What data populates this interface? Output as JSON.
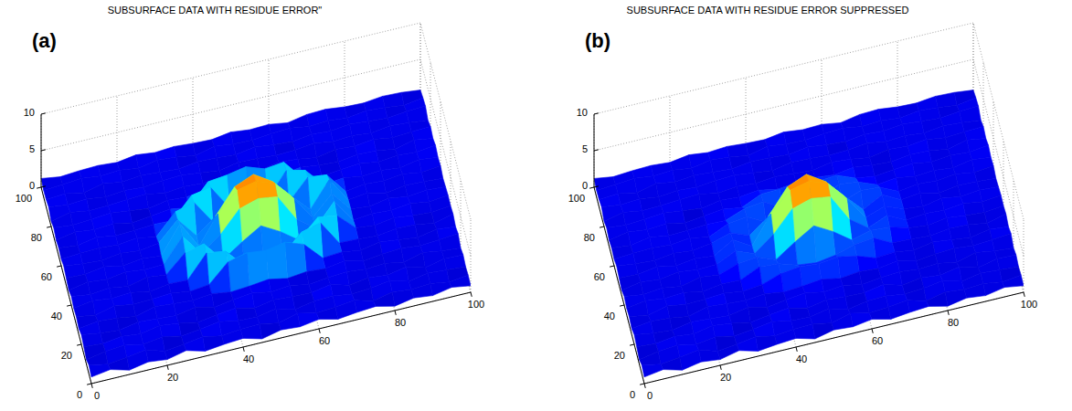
{
  "panel_labels": [
    "(a)",
    "(b)"
  ],
  "chart_data": [
    {
      "type": "surface",
      "title": "SUBSURFACE DATA WITH RESIDUE ERROR\"",
      "x": [
        0,
        5,
        10,
        15,
        20,
        25,
        30,
        35,
        40,
        45,
        50,
        55,
        60,
        65,
        70,
        75,
        80,
        85,
        90,
        95,
        100
      ],
      "y": [
        0,
        5,
        10,
        15,
        20,
        25,
        30,
        35,
        40,
        45,
        50,
        55,
        60,
        65,
        70,
        75,
        80,
        85,
        90,
        95,
        100
      ],
      "z": [
        [
          0.9,
          1.3,
          0.6,
          1.1,
          0.8,
          1.4,
          0.7,
          1.0,
          1.2,
          0.5,
          1.1,
          0.9,
          1.3,
          0.7,
          1.0,
          1.2,
          0.6,
          1.1,
          0.8,
          1.3,
          0.9
        ],
        [
          1.2,
          0.7,
          1.0,
          1.4,
          0.6,
          0.9,
          1.3,
          0.8,
          1.1,
          1.2,
          0.7,
          1.4,
          0.8,
          1.0,
          1.3,
          0.6,
          1.2,
          0.9,
          1.1,
          0.7,
          1.0
        ],
        [
          0.6,
          1.1,
          1.3,
          0.8,
          1.2,
          0.7,
          1.0,
          1.4,
          0.9,
          0.8,
          1.3,
          0.6,
          1.1,
          1.2,
          0.8,
          1.0,
          1.4,
          0.7,
          1.2,
          1.0,
          0.8
        ],
        [
          1.0,
          0.8,
          1.2,
          0.9,
          1.4,
          1.1,
          0.6,
          1.0,
          1.3,
          0.7,
          1.2,
          1.0,
          0.9,
          1.4,
          0.7,
          1.1,
          0.8,
          1.3,
          0.6,
          1.2,
          1.1
        ],
        [
          1.3,
          0.9,
          0.7,
          1.2,
          1.0,
          0.8,
          1.3,
          0.7,
          1.1,
          1.4,
          0.9,
          1.2,
          0.7,
          1.0,
          1.2,
          0.9,
          1.1,
          0.6,
          1.3,
          0.9,
          0.7
        ],
        [
          0.8,
          1.2,
          1.0,
          0.6,
          1.3,
          1.1,
          0.9,
          1.2,
          0.8,
          1.0,
          1.3,
          0.8,
          1.1,
          0.9,
          1.3,
          0.7,
          1.0,
          1.2,
          0.9,
          1.1,
          1.3
        ],
        [
          1.1,
          0.7,
          1.3,
          0.9,
          1.0,
          1.2,
          0.8,
          1.1,
          3.6,
          4.2,
          3.9,
          4.4,
          3.5,
          1.0,
          1.2,
          0.8,
          1.3,
          1.0,
          0.7,
          1.2,
          0.9
        ],
        [
          0.9,
          1.3,
          1.0,
          1.2,
          0.7,
          1.1,
          1.0,
          4.1,
          3.7,
          1.2,
          0.9,
          1.3,
          3.8,
          4.5,
          1.1,
          1.0,
          0.8,
          1.2,
          1.1,
          0.7,
          1.3
        ],
        [
          1.2,
          0.8,
          1.1,
          0.7,
          1.3,
          1.0,
          3.4,
          4.0,
          1.2,
          3.0,
          4.6,
          3.2,
          1.4,
          3.9,
          3.5,
          1.2,
          0.9,
          1.3,
          1.0,
          0.8,
          1.1
        ],
        [
          0.7,
          1.2,
          0.9,
          1.3,
          1.0,
          1.1,
          4.3,
          1.3,
          3.3,
          6.2,
          7.0,
          6.6,
          2.9,
          1.1,
          4.1,
          0.9,
          1.2,
          1.0,
          1.3,
          0.9,
          1.2
        ],
        [
          1.0,
          0.9,
          1.3,
          0.8,
          1.2,
          0.9,
          4.7,
          1.0,
          4.8,
          7.4,
          8.0,
          7.1,
          4.4,
          1.2,
          3.8,
          1.1,
          0.8,
          1.3,
          0.9,
          1.2,
          1.0
        ],
        [
          1.3,
          1.0,
          0.8,
          1.2,
          0.9,
          1.3,
          3.9,
          1.1,
          3.1,
          6.5,
          7.6,
          6.0,
          3.4,
          0.9,
          4.4,
          1.0,
          1.3,
          0.7,
          1.1,
          1.0,
          0.8
        ],
        [
          0.9,
          1.1,
          1.2,
          1.0,
          1.3,
          0.8,
          3.6,
          4.3,
          1.0,
          2.8,
          4.9,
          3.1,
          1.2,
          4.0,
          3.7,
          0.8,
          1.2,
          1.0,
          1.3,
          0.9,
          1.2
        ],
        [
          1.1,
          0.8,
          1.3,
          0.9,
          1.0,
          1.2,
          1.1,
          3.9,
          4.4,
          1.0,
          1.3,
          0.9,
          4.2,
          3.6,
          1.0,
          1.3,
          0.9,
          1.1,
          0.8,
          1.3,
          1.0
        ],
        [
          0.8,
          1.3,
          1.0,
          1.2,
          0.7,
          1.0,
          1.3,
          0.9,
          3.8,
          4.1,
          4.6,
          3.7,
          4.0,
          1.2,
          0.8,
          1.1,
          1.3,
          0.9,
          1.2,
          1.0,
          1.3
        ],
        [
          1.2,
          0.9,
          1.1,
          1.3,
          1.0,
          0.7,
          1.2,
          1.0,
          1.3,
          0.8,
          1.1,
          1.2,
          0.9,
          1.3,
          1.0,
          0.8,
          1.2,
          1.1,
          0.7,
          1.3,
          0.9
        ],
        [
          0.7,
          1.3,
          0.9,
          1.0,
          1.2,
          1.3,
          0.8,
          1.1,
          0.9,
          1.2,
          1.0,
          0.8,
          1.3,
          1.1,
          0.7,
          1.2,
          1.0,
          1.3,
          0.9,
          1.1,
          1.2
        ],
        [
          1.3,
          1.0,
          1.2,
          0.8,
          1.1,
          0.9,
          1.2,
          1.3,
          1.0,
          0.7,
          1.2,
          1.1,
          0.9,
          1.0,
          1.3,
          0.9,
          1.1,
          0.8,
          1.2,
          1.0,
          0.7
        ],
        [
          1.0,
          1.2,
          0.7,
          1.3,
          0.9,
          1.2,
          1.0,
          0.8,
          1.2,
          1.1,
          0.9,
          1.3,
          1.0,
          0.8,
          1.2,
          1.0,
          1.3,
          1.1,
          0.9,
          1.2,
          1.3
        ],
        [
          0.9,
          1.1,
          1.3,
          1.0,
          1.2,
          0.8,
          1.3,
          1.1,
          0.7,
          1.3,
          1.0,
          0.9,
          1.2,
          1.3,
          0.9,
          1.1,
          0.8,
          1.2,
          1.0,
          0.7,
          1.1
        ],
        [
          1.2,
          0.8,
          1.0,
          1.1,
          0.9,
          1.3,
          1.0,
          1.2,
          1.0,
          0.9,
          1.3,
          1.0,
          1.1,
          0.7,
          1.2,
          1.3,
          1.0,
          0.9,
          1.2,
          1.1,
          0.8
        ]
      ],
      "xlim": [
        0,
        100
      ],
      "ylim": [
        0,
        100
      ],
      "zlim": [
        0,
        10
      ],
      "xticks": [
        0,
        20,
        40,
        60,
        80,
        100
      ],
      "yticks": [
        0,
        20,
        40,
        60,
        80,
        100
      ],
      "zticks": [
        0,
        5,
        10
      ],
      "grid": true
    },
    {
      "type": "surface",
      "title": "SUBSURFACE DATA WITH RESIDUE ERROR SUPPRESSED",
      "x": [
        0,
        5,
        10,
        15,
        20,
        25,
        30,
        35,
        40,
        45,
        50,
        55,
        60,
        65,
        70,
        75,
        80,
        85,
        90,
        95,
        100
      ],
      "y": [
        0,
        5,
        10,
        15,
        20,
        25,
        30,
        35,
        40,
        45,
        50,
        55,
        60,
        65,
        70,
        75,
        80,
        85,
        90,
        95,
        100
      ],
      "z": [
        [
          0.9,
          1.3,
          0.6,
          1.1,
          0.8,
          1.4,
          0.7,
          1.0,
          1.2,
          0.5,
          1.1,
          0.9,
          1.3,
          0.7,
          1.0,
          1.2,
          0.6,
          1.1,
          0.8,
          1.3,
          0.9
        ],
        [
          1.2,
          0.7,
          1.0,
          1.4,
          0.6,
          0.9,
          1.3,
          0.8,
          1.1,
          1.2,
          0.7,
          1.4,
          0.8,
          1.0,
          1.3,
          0.6,
          1.2,
          0.9,
          1.1,
          0.7,
          1.0
        ],
        [
          0.6,
          1.1,
          1.3,
          0.8,
          1.2,
          0.7,
          1.0,
          1.4,
          0.9,
          0.8,
          1.3,
          0.6,
          1.1,
          1.2,
          0.8,
          1.0,
          1.4,
          0.7,
          1.2,
          1.0,
          0.8
        ],
        [
          1.0,
          0.8,
          1.2,
          0.9,
          1.4,
          1.1,
          0.6,
          1.0,
          1.3,
          0.7,
          1.2,
          1.0,
          0.9,
          1.4,
          0.7,
          1.1,
          0.8,
          1.3,
          0.6,
          1.2,
          1.1
        ],
        [
          1.3,
          0.9,
          0.7,
          1.2,
          1.0,
          0.8,
          1.3,
          0.7,
          1.1,
          1.4,
          0.9,
          1.2,
          0.7,
          1.0,
          1.2,
          0.9,
          1.1,
          0.6,
          1.3,
          0.9,
          0.7
        ],
        [
          0.8,
          1.2,
          1.0,
          0.6,
          1.3,
          1.1,
          0.9,
          1.2,
          0.8,
          1.0,
          1.3,
          0.8,
          1.1,
          0.9,
          1.3,
          0.7,
          1.0,
          1.2,
          0.9,
          1.1,
          1.3
        ],
        [
          1.1,
          0.7,
          1.3,
          0.9,
          1.0,
          1.2,
          0.8,
          1.1,
          2.0,
          2.3,
          2.1,
          2.4,
          1.9,
          1.0,
          1.2,
          0.8,
          1.3,
          1.0,
          0.7,
          1.2,
          0.9
        ],
        [
          0.9,
          1.3,
          1.0,
          1.2,
          0.7,
          1.1,
          1.0,
          2.2,
          2.0,
          1.2,
          0.9,
          1.3,
          2.1,
          2.4,
          1.1,
          1.0,
          0.8,
          1.2,
          1.1,
          0.7,
          1.3
        ],
        [
          1.2,
          0.8,
          1.1,
          0.7,
          1.3,
          1.0,
          1.9,
          2.2,
          1.2,
          3.0,
          4.6,
          3.2,
          1.4,
          2.1,
          1.9,
          1.2,
          0.9,
          1.3,
          1.0,
          0.8,
          1.1
        ],
        [
          0.7,
          1.2,
          0.9,
          1.3,
          1.0,
          1.1,
          2.3,
          1.3,
          3.3,
          6.2,
          7.0,
          6.6,
          2.9,
          1.1,
          2.2,
          0.9,
          1.2,
          1.0,
          1.3,
          0.9,
          1.2
        ],
        [
          1.0,
          0.9,
          1.3,
          0.8,
          1.2,
          0.9,
          2.5,
          1.0,
          4.8,
          7.4,
          8.0,
          7.1,
          4.4,
          1.2,
          2.1,
          1.1,
          0.8,
          1.3,
          0.9,
          1.2,
          1.0
        ],
        [
          1.3,
          1.0,
          0.8,
          1.2,
          0.9,
          1.3,
          2.1,
          1.1,
          3.1,
          6.5,
          7.6,
          6.0,
          3.4,
          0.9,
          2.3,
          1.0,
          1.3,
          0.7,
          1.1,
          1.0,
          0.8
        ],
        [
          0.9,
          1.1,
          1.2,
          1.0,
          1.3,
          0.8,
          2.0,
          2.3,
          1.0,
          2.8,
          4.9,
          3.1,
          1.2,
          2.2,
          2.0,
          0.8,
          1.2,
          1.0,
          1.3,
          0.9,
          1.2
        ],
        [
          1.1,
          0.8,
          1.3,
          0.9,
          1.0,
          1.2,
          1.1,
          2.1,
          2.4,
          1.0,
          1.3,
          0.9,
          2.3,
          2.0,
          1.0,
          1.3,
          0.9,
          1.1,
          0.8,
          1.3,
          1.0
        ],
        [
          0.8,
          1.3,
          1.0,
          1.2,
          0.7,
          1.0,
          1.3,
          0.9,
          2.1,
          2.2,
          2.5,
          2.0,
          2.2,
          1.2,
          0.8,
          1.1,
          1.3,
          0.9,
          1.2,
          1.0,
          1.3
        ],
        [
          1.2,
          0.9,
          1.1,
          1.3,
          1.0,
          0.7,
          1.2,
          1.0,
          1.3,
          0.8,
          1.1,
          1.2,
          0.9,
          1.3,
          1.0,
          0.8,
          1.2,
          1.1,
          0.7,
          1.3,
          0.9
        ],
        [
          0.7,
          1.3,
          0.9,
          1.0,
          1.2,
          1.3,
          0.8,
          1.1,
          0.9,
          1.2,
          1.0,
          0.8,
          1.3,
          1.1,
          0.7,
          1.2,
          1.0,
          1.3,
          0.9,
          1.1,
          1.2
        ],
        [
          1.3,
          1.0,
          1.2,
          0.8,
          1.1,
          0.9,
          1.2,
          1.3,
          1.0,
          0.7,
          1.2,
          1.1,
          0.9,
          1.0,
          1.3,
          0.9,
          1.1,
          0.8,
          1.2,
          1.0,
          0.7
        ],
        [
          1.0,
          1.2,
          0.7,
          1.3,
          0.9,
          1.2,
          1.0,
          0.8,
          1.2,
          1.1,
          0.9,
          1.3,
          1.0,
          0.8,
          1.2,
          1.0,
          1.3,
          1.1,
          0.9,
          1.2,
          1.3
        ],
        [
          0.9,
          1.1,
          1.3,
          1.0,
          1.2,
          0.8,
          1.3,
          1.1,
          0.7,
          1.3,
          1.0,
          0.9,
          1.2,
          1.3,
          0.9,
          1.1,
          0.8,
          1.2,
          1.0,
          0.7,
          1.1
        ],
        [
          1.2,
          0.8,
          1.0,
          1.1,
          0.9,
          1.3,
          1.0,
          1.2,
          1.0,
          0.9,
          1.3,
          1.0,
          1.1,
          0.7,
          1.2,
          1.3,
          1.0,
          0.9,
          1.2,
          1.1,
          0.8
        ]
      ],
      "xlim": [
        0,
        100
      ],
      "ylim": [
        0,
        100
      ],
      "zlim": [
        0,
        10
      ],
      "xticks": [
        0,
        20,
        40,
        60,
        80,
        100
      ],
      "yticks": [
        0,
        20,
        40,
        60,
        80,
        100
      ],
      "zticks": [
        0,
        5,
        10
      ],
      "grid": true
    }
  ]
}
